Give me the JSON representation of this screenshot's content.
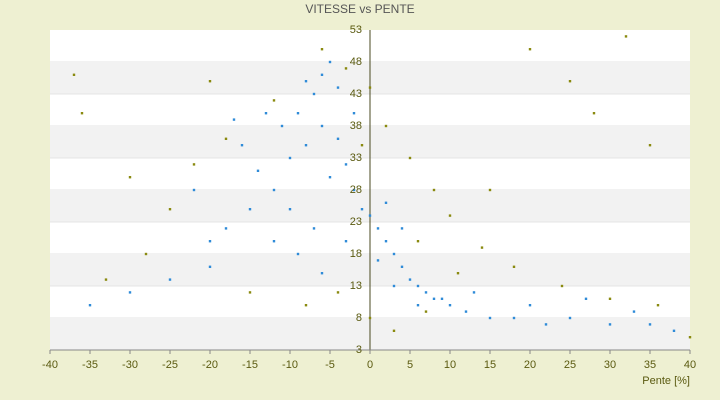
{
  "chart_data": {
    "type": "scatter",
    "title": "VITESSE vs PENTE",
    "x_label": "Pente [%]",
    "xlim": [
      -40,
      40
    ],
    "xticks": [
      -40,
      -35,
      -30,
      -25,
      -20,
      -15,
      -10,
      -5,
      0,
      5,
      10,
      15,
      20,
      25,
      30,
      35,
      40
    ],
    "ylim": [
      3,
      53
    ],
    "yticks": [
      53,
      48,
      43,
      38,
      33,
      28,
      23,
      18,
      13,
      8,
      3
    ],
    "grid": true,
    "series": [
      {
        "color": "#2f8bd8",
        "x": [
          -10,
          -8,
          -6,
          -5,
          -12,
          -14,
          -9,
          -7,
          -4,
          -3,
          -2,
          -1,
          0,
          1,
          2,
          3,
          4,
          5,
          6,
          7,
          8,
          10,
          12,
          15,
          18,
          22,
          25,
          30,
          35,
          38,
          -15,
          -18,
          -20,
          -16,
          -11,
          -6,
          -5,
          -8,
          -13,
          -10,
          -7,
          -3,
          1,
          3,
          6,
          9,
          -20,
          -25,
          -30,
          -35,
          -22,
          -17,
          -4,
          -2,
          2,
          4,
          13,
          20,
          27,
          33,
          -12,
          -9,
          -6
        ],
        "values": [
          33,
          35,
          38,
          30,
          28,
          31,
          40,
          43,
          36,
          32,
          28,
          25,
          24,
          22,
          20,
          18,
          16,
          14,
          13,
          12,
          11,
          10,
          9,
          8,
          8,
          7,
          8,
          7,
          7,
          6,
          25,
          22,
          20,
          35,
          38,
          46,
          48,
          45,
          40,
          25,
          22,
          20,
          17,
          13,
          10,
          11,
          16,
          14,
          12,
          10,
          28,
          39,
          44,
          40,
          26,
          22,
          12,
          10,
          11,
          9,
          20,
          18,
          15
        ]
      },
      {
        "color": "#8a8a10",
        "x": [
          -12,
          -18,
          -22,
          -25,
          -28,
          -33,
          -37,
          -36,
          -6,
          -3,
          0,
          2,
          5,
          8,
          10,
          14,
          18,
          24,
          30,
          36,
          40,
          20,
          25,
          -20,
          -8,
          -4,
          0,
          3,
          7,
          15,
          28,
          35,
          32,
          -30,
          -15,
          11,
          6,
          -1
        ],
        "values": [
          42,
          36,
          32,
          25,
          18,
          14,
          46,
          40,
          50,
          47,
          44,
          38,
          33,
          28,
          24,
          19,
          16,
          13,
          11,
          10,
          5,
          50,
          45,
          45,
          10,
          12,
          8,
          6,
          9,
          28,
          40,
          35,
          52,
          30,
          12,
          15,
          20,
          35
        ]
      }
    ]
  }
}
